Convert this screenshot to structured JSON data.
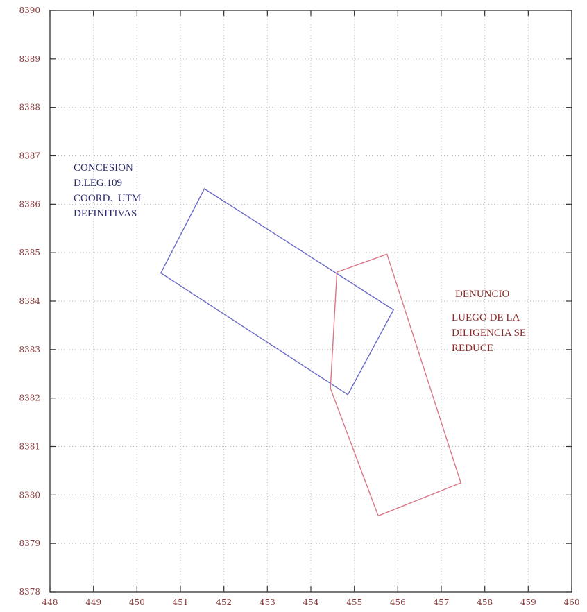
{
  "chart_data": {
    "type": "line",
    "title": "",
    "xlabel": "",
    "ylabel": "",
    "xlim": [
      448,
      460
    ],
    "ylim": [
      8378,
      8390
    ],
    "x_ticks": [
      "448",
      "449",
      "450",
      "451",
      "452",
      "453",
      "454",
      "455",
      "456",
      "457",
      "458",
      "459",
      "460"
    ],
    "y_ticks": [
      "8378",
      "8379",
      "8380",
      "8381",
      "8382",
      "8383",
      "8384",
      "8385",
      "8386",
      "8387",
      "8388",
      "8389",
      "8390"
    ],
    "grid": true,
    "series": [
      {
        "color": "#6a6ac8",
        "closed": true,
        "points": [
          [
            451.55,
            8386.32
          ],
          [
            455.9,
            8383.82
          ],
          [
            454.85,
            8382.07
          ],
          [
            450.55,
            8384.58
          ]
        ]
      },
      {
        "color": "#d87888",
        "closed": true,
        "points": [
          [
            455.75,
            8384.97
          ],
          [
            457.45,
            8380.25
          ],
          [
            455.55,
            8379.57
          ],
          [
            454.45,
            8382.2
          ],
          [
            454.6,
            8384.6
          ]
        ]
      }
    ],
    "annotations": [
      {
        "text": "CONCESION\nD.LEG.109\nCOORD.  UTM\nDEFINITIVAS",
        "color": "#2a2a6e"
      },
      {
        "text": "DENUNCIO",
        "color": "#8a2b2b"
      },
      {
        "text": "LUEGO DE LA\nDILIGENCIA SE\nREDUCE",
        "color": "#8a2b2b"
      }
    ]
  }
}
